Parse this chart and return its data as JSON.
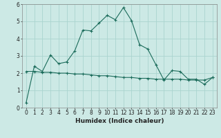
{
  "xlabel": "Humidex (Indice chaleur)",
  "x_values": [
    0,
    1,
    2,
    3,
    4,
    5,
    6,
    7,
    8,
    9,
    10,
    11,
    12,
    13,
    14,
    15,
    16,
    17,
    18,
    19,
    20,
    21,
    22,
    23
  ],
  "line1_y": [
    0.3,
    2.4,
    2.1,
    3.05,
    2.55,
    2.65,
    3.3,
    4.5,
    4.45,
    4.9,
    5.35,
    5.1,
    5.8,
    5.05,
    3.65,
    3.4,
    2.5,
    1.6,
    2.15,
    2.1,
    1.65,
    1.65,
    1.35,
    1.75
  ],
  "line2_y": [
    2.1,
    2.1,
    2.05,
    2.05,
    2.0,
    2.0,
    1.95,
    1.95,
    1.9,
    1.85,
    1.85,
    1.8,
    1.75,
    1.75,
    1.7,
    1.7,
    1.65,
    1.65,
    1.65,
    1.65,
    1.6,
    1.6,
    1.6,
    1.75
  ],
  "line_color": "#1a6b5a",
  "bg_color": "#cce9e5",
  "grid_color": "#aad4cf",
  "ylim": [
    0,
    6
  ],
  "xlim": [
    -0.5,
    23.5
  ],
  "yticks": [
    0,
    1,
    2,
    3,
    4,
    5,
    6
  ],
  "tick_fontsize": 5.5,
  "xlabel_fontsize": 6.5
}
